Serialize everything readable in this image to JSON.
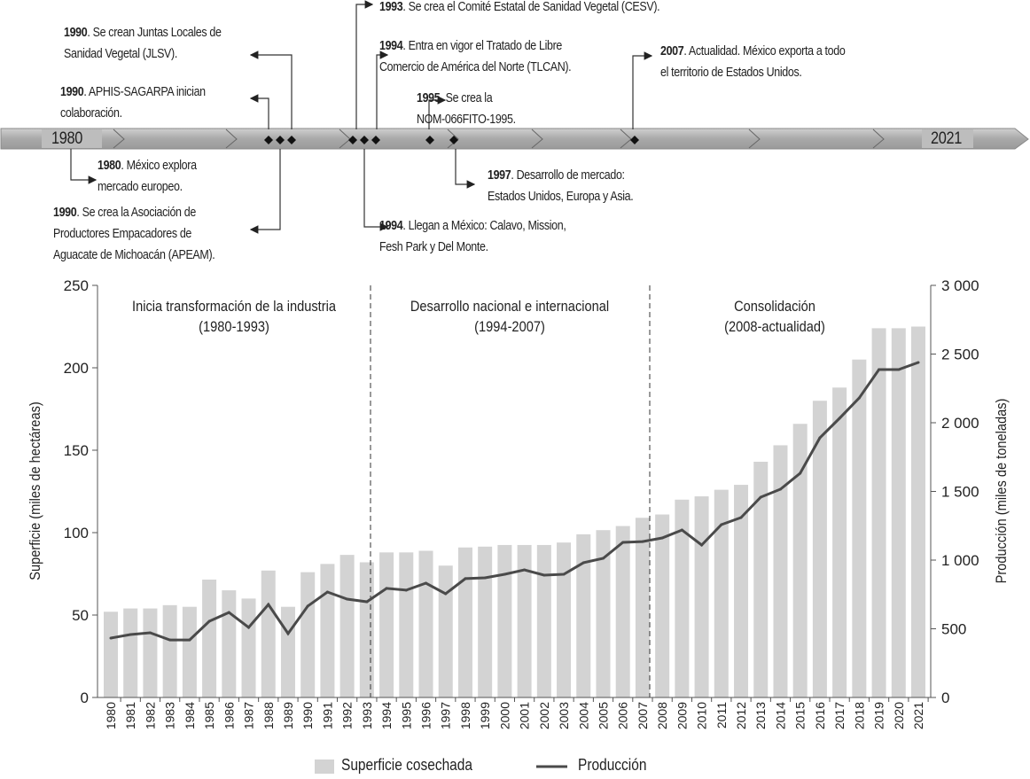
{
  "timeline": {
    "start_label": "1980",
    "end_label": "2021",
    "events": [
      {
        "year": "1990",
        "text": ". Se crean Juntas Locales de",
        "text2": "Sanidad Vegetal (JLSV)."
      },
      {
        "year": "1990",
        "text": ". APHIS-SAGARPA inician",
        "text2": "colaboración."
      },
      {
        "year": "1993",
        "text": ". Se crea el Comité Estatal de Sanidad Vegetal (CESV).",
        "text2": ""
      },
      {
        "year": "1994",
        "text": ". Entra en vigor el Tratado de Libre",
        "text2": "Comercio de América del Norte (TLCAN)."
      },
      {
        "year": "1995",
        "text": ". Se crea la",
        "text2": "NOM-066FITO-1995."
      },
      {
        "year": "2007",
        "text": ". Actualidad. México exporta a todo",
        "text2": "el territorio de Estados Unidos."
      },
      {
        "year": "1980",
        "text": ". México explora",
        "text2": "mercado europeo."
      },
      {
        "year": "1990",
        "text": ". Se crea la Asociación de",
        "text2": "Productores Empacadores de",
        "text3": "Aguacate de Michoacán (APEAM)."
      },
      {
        "year": "1997",
        "text": ". Desarrollo de mercado:",
        "text2": "Estados Unidos, Europa y Asia."
      },
      {
        "year": "1994",
        "text": ". Llegan a México: Calavo, Mission,",
        "text2": "Fesh Park y Del Monte."
      }
    ]
  },
  "chart_data": {
    "type": "bar+line",
    "categories": [
      "1980",
      "1981",
      "1982",
      "1983",
      "1984",
      "1985",
      "1986",
      "1987",
      "1988",
      "1989",
      "1990",
      "1991",
      "1992",
      "1993",
      "1994",
      "1995",
      "1996",
      "1997",
      "1998",
      "1999",
      "2000",
      "2001",
      "2002",
      "2003",
      "2004",
      "2005",
      "2006",
      "2007",
      "2008",
      "2009",
      "2010",
      "2011",
      "2012",
      "2013",
      "2014",
      "2015",
      "2016",
      "2017",
      "2018",
      "2019",
      "2020",
      "2021"
    ],
    "series": [
      {
        "name": "Superficie cosechada",
        "type": "bar",
        "axis": "left",
        "color": "#d3d3d3",
        "values": [
          52,
          54,
          54,
          56,
          55,
          71.5,
          65,
          60,
          77,
          55,
          76,
          81,
          86.5,
          82,
          88,
          88,
          89,
          80,
          91,
          91.5,
          92.5,
          92.5,
          92.5,
          94,
          99,
          101.5,
          104,
          109,
          111,
          120,
          122,
          126,
          129,
          143,
          153,
          166,
          180,
          188,
          205,
          224,
          224,
          225
        ]
      },
      {
        "name": "Producción",
        "type": "line",
        "axis": "right",
        "color": "#4a4a4a",
        "values": [
          432,
          458,
          471,
          419,
          419,
          555,
          619,
          510,
          677,
          465,
          665,
          768,
          716,
          697,
          794,
          781,
          832,
          755,
          865,
          871,
          897,
          929,
          890,
          897,
          981,
          1013,
          1129,
          1135,
          1161,
          1219,
          1110,
          1258,
          1310,
          1458,
          1516,
          1632,
          1890,
          2032,
          2180,
          2387,
          2387,
          2439
        ]
      }
    ],
    "ylabel": "Superficie (miles de hectáreas)",
    "ylabel_right": "Producción (miles de toneladas)",
    "ylim": [
      0,
      250
    ],
    "ylim_right": [
      0,
      3000
    ],
    "yticks": [
      "0",
      "50",
      "100",
      "150",
      "200",
      "250"
    ],
    "yticks_right": [
      "0",
      "500",
      "1 000",
      "1 500",
      "2 000",
      "2 500",
      "3 000"
    ],
    "periods": [
      {
        "title": "Inicia transformación de la industria",
        "range": "(1980-1993)"
      },
      {
        "title": "Desarrollo nacional e internacional",
        "range": "(1994-2007)"
      },
      {
        "title": "Consolidación",
        "range": "(2008-actualidad)"
      }
    ],
    "legend": {
      "bar": "Superficie cosechada",
      "line": "Producción",
      "placement": "bottom"
    }
  }
}
